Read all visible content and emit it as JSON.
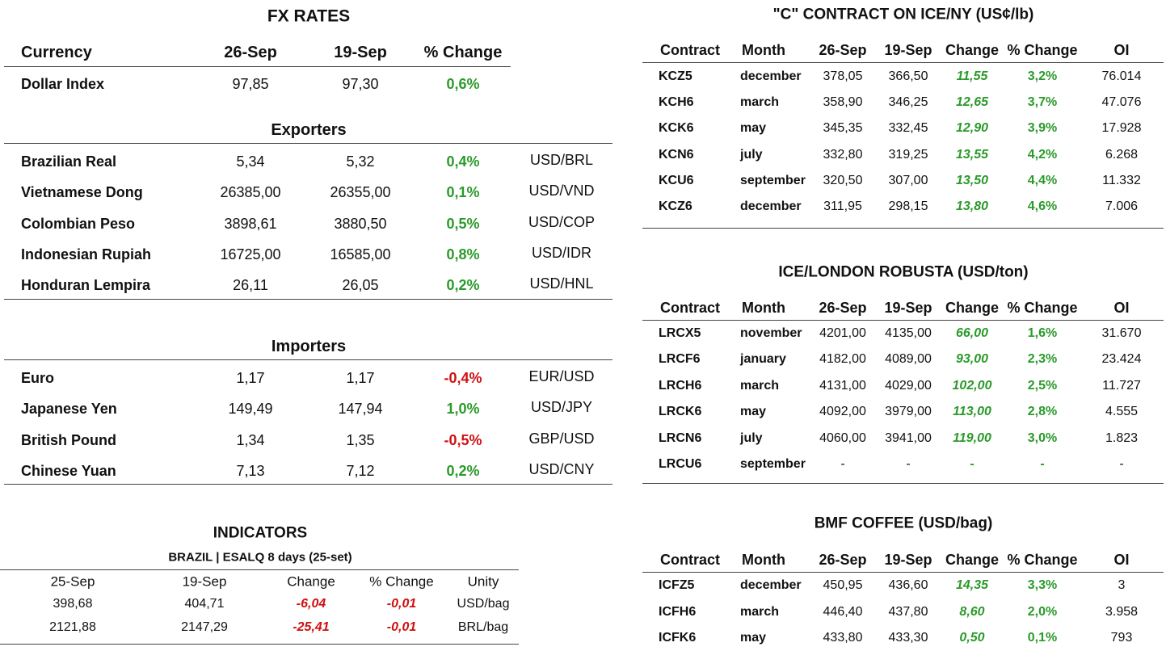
{
  "fx": {
    "title": "FX RATES",
    "header": [
      "Currency",
      "26-Sep",
      "19-Sep",
      "% Change"
    ],
    "rows": [
      [
        "Dollar Index",
        "97,85",
        "97,30",
        "0,6%"
      ]
    ]
  },
  "exporters": {
    "title": "Exporters",
    "rows": [
      [
        "Brazilian Real",
        "5,34",
        "5,32",
        "0,4%",
        "USD/BRL"
      ],
      [
        "Vietnamese Dong",
        "26385,00",
        "26355,00",
        "0,1%",
        "USD/VND"
      ],
      [
        "Colombian Peso",
        "3898,61",
        "3880,50",
        "0,5%",
        "USD/COP"
      ],
      [
        "Indonesian Rupiah",
        "16725,00",
        "16585,00",
        "0,8%",
        "USD/IDR"
      ],
      [
        "Honduran Lempira",
        "26,11",
        "26,05",
        "0,2%",
        "USD/HNL"
      ]
    ]
  },
  "importers": {
    "title": "Importers",
    "rows": [
      [
        "Euro",
        "1,17",
        "1,17",
        "-0,4%",
        "EUR/USD"
      ],
      [
        "Japanese Yen",
        "149,49",
        "147,94",
        "1,0%",
        "USD/JPY"
      ],
      [
        "British Pound",
        "1,34",
        "1,35",
        "-0,5%",
        "GBP/USD"
      ],
      [
        "Chinese Yuan",
        "7,13",
        "7,12",
        "0,2%",
        "USD/CNY"
      ]
    ]
  },
  "indicators": {
    "title": "INDICATORS",
    "subtitle": "BRAZIL | ESALQ 8 days (25-set)",
    "header": [
      "25-Sep",
      "19-Sep",
      "Change",
      "% Change",
      "Unity"
    ],
    "rows": [
      [
        "398,68",
        "404,71",
        "-6,04",
        "-0,01",
        "USD/bag"
      ],
      [
        "2121,88",
        "2147,29",
        "-25,41",
        "-0,01",
        "BRL/bag"
      ]
    ]
  },
  "futures": [
    {
      "title": "\"C\" CONTRACT ON ICE/NY (US¢/lb)",
      "header": [
        "Contract",
        "Month",
        "26-Sep",
        "19-Sep",
        "Change",
        "% Change",
        "OI"
      ],
      "rows": [
        [
          "KCZ5",
          "december",
          "378,05",
          "366,50",
          "11,55",
          "3,2%",
          "76.014"
        ],
        [
          "KCH6",
          "march",
          "358,90",
          "346,25",
          "12,65",
          "3,7%",
          "47.076"
        ],
        [
          "KCK6",
          "may",
          "345,35",
          "332,45",
          "12,90",
          "3,9%",
          "17.928"
        ],
        [
          "KCN6",
          "july",
          "332,80",
          "319,25",
          "13,55",
          "4,2%",
          "6.268"
        ],
        [
          "KCU6",
          "september",
          "320,50",
          "307,00",
          "13,50",
          "4,4%",
          "11.332"
        ],
        [
          "KCZ6",
          "december",
          "311,95",
          "298,15",
          "13,80",
          "4,6%",
          "7.006"
        ]
      ]
    },
    {
      "title": "ICE/LONDON ROBUSTA (USD/ton)",
      "header": [
        "Contract",
        "Month",
        "26-Sep",
        "19-Sep",
        "Change",
        "% Change",
        "OI"
      ],
      "rows": [
        [
          "LRCX5",
          "november",
          "4201,00",
          "4135,00",
          "66,00",
          "1,6%",
          "31.670"
        ],
        [
          "LRCF6",
          "january",
          "4182,00",
          "4089,00",
          "93,00",
          "2,3%",
          "23.424"
        ],
        [
          "LRCH6",
          "march",
          "4131,00",
          "4029,00",
          "102,00",
          "2,5%",
          "11.727"
        ],
        [
          "LRCK6",
          "may",
          "4092,00",
          "3979,00",
          "113,00",
          "2,8%",
          "4.555"
        ],
        [
          "LRCN6",
          "july",
          "4060,00",
          "3941,00",
          "119,00",
          "3,0%",
          "1.823"
        ],
        [
          "LRCU6",
          "september",
          "-",
          "-",
          "-",
          "-",
          "-"
        ]
      ]
    },
    {
      "title": "BMF COFFEE (USD/bag)",
      "header": [
        "Contract",
        "Month",
        "26-Sep",
        "19-Sep",
        "Change",
        "% Change",
        "OI"
      ],
      "rows": [
        [
          "ICFZ5",
          "december",
          "450,95",
          "436,60",
          "14,35",
          "3,3%",
          "3"
        ],
        [
          "ICFH6",
          "march",
          "446,40",
          "437,80",
          "8,60",
          "2,0%",
          "3.958"
        ],
        [
          "ICFK6",
          "may",
          "433,80",
          "433,30",
          "0,50",
          "0,1%",
          "793"
        ]
      ]
    }
  ]
}
